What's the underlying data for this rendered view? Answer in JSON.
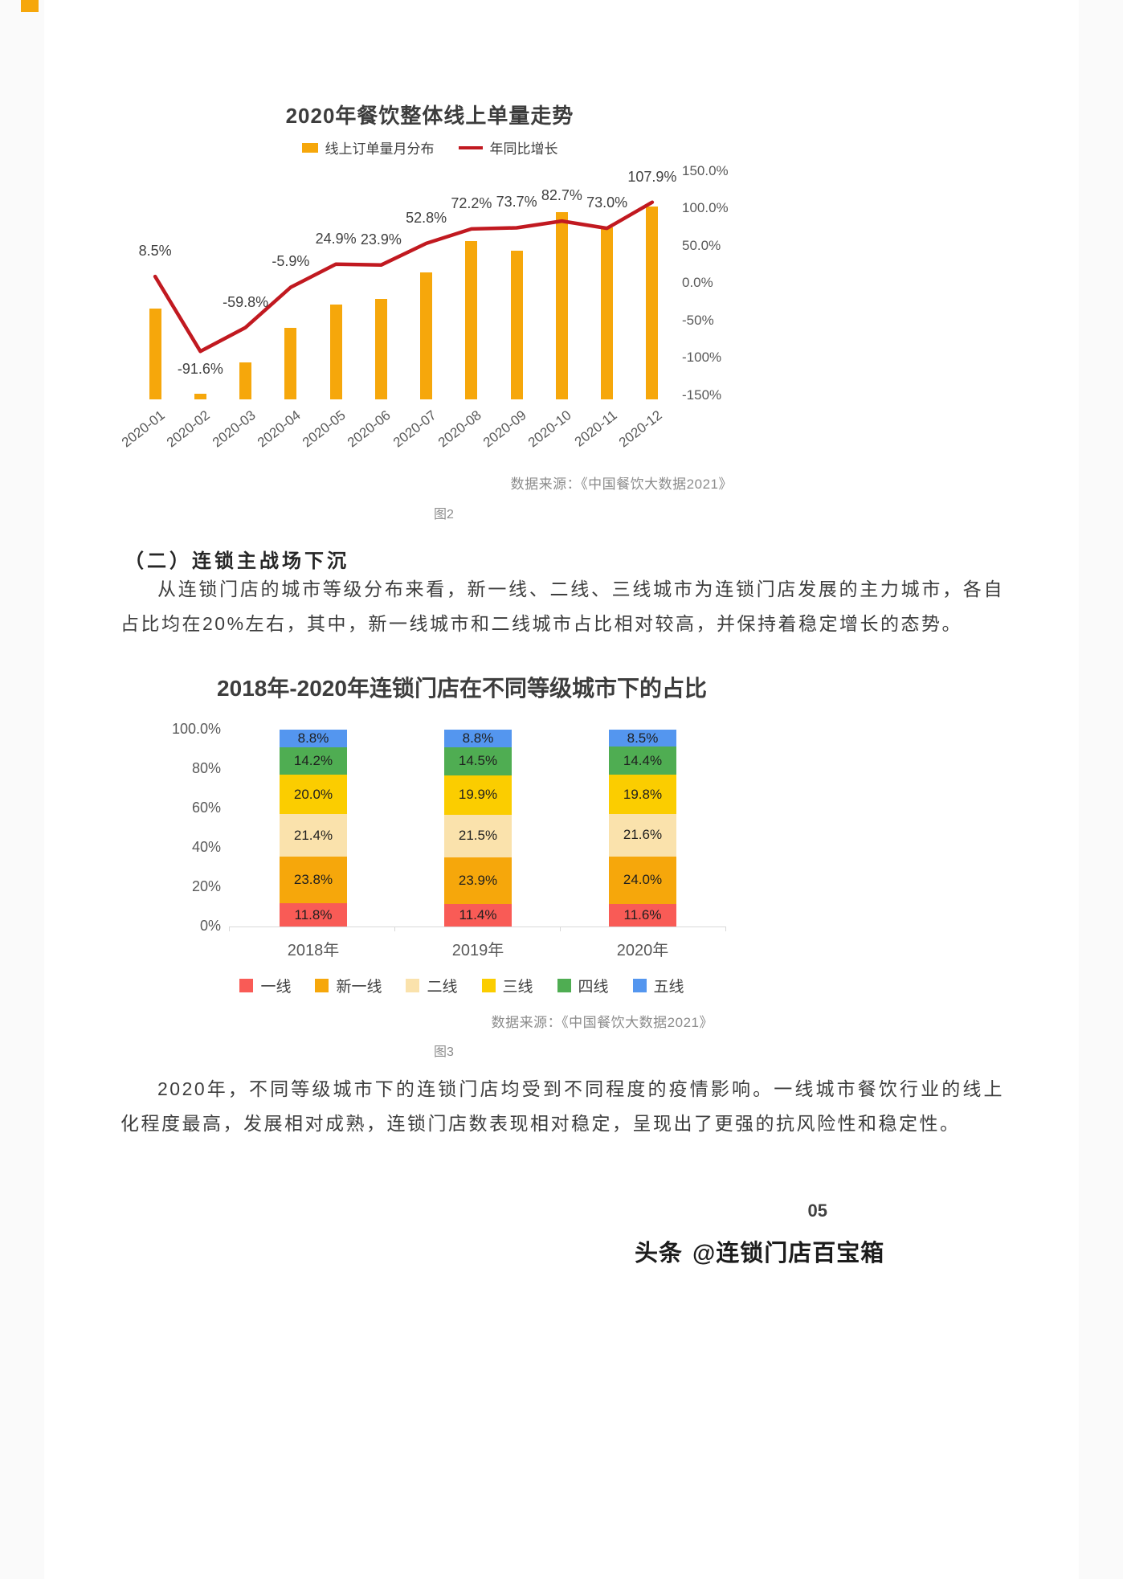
{
  "page_number": "05",
  "watermark": {
    "prefix": "头条",
    "handle": "@连锁门店百宝箱"
  },
  "section": {
    "heading": "（二）连锁主战场下沉",
    "paragraph": "从连锁门店的城市等级分布来看，新一线、二线、三线城市为连锁门店发展的主力城市，各自占比均在20%左右，其中，新一线城市和二线城市占比相对较高，并保持着稳定增长的态势。"
  },
  "closing_paragraph": "2020年，不同等级城市下的连锁门店均受到不同程度的疫情影响。一线城市餐饮行业的线上化程度最高，发展相对成熟，连锁门店数表现相对稳定，呈现出了更强的抗风险性和稳定性。",
  "chart_data": [
    {
      "type": "bar",
      "subtype": "bar+line-combo",
      "title": "2020年餐饮整体线上单量走势",
      "legend": [
        "线上订单量月分布",
        "年同比增长"
      ],
      "legend_position": "top",
      "grid": false,
      "categories": [
        "2020-01",
        "2020-02",
        "2020-03",
        "2020-04",
        "2020-05",
        "2020-06",
        "2020-07",
        "2020-08",
        "2020-09",
        "2020-10",
        "2020-11",
        "2020-12"
      ],
      "series": [
        {
          "name": "线上订单量月分布",
          "type": "bar",
          "unit": "relative-height-estimate",
          "values": [
            0.47,
            0.03,
            0.19,
            0.37,
            0.49,
            0.52,
            0.66,
            0.82,
            0.77,
            0.97,
            0.89,
            1.0
          ]
        },
        {
          "name": "年同比增长",
          "type": "line",
          "unit": "%",
          "values": [
            8.5,
            -91.6,
            -59.8,
            -5.9,
            24.9,
            23.9,
            52.8,
            72.2,
            73.7,
            82.7,
            73.0,
            107.9
          ],
          "labels": [
            "8.5%",
            "-91.6%",
            "-59.8%",
            "-5.9%",
            "24.9%",
            "23.9%",
            "52.8%",
            "72.2%",
            "73.7%",
            "82.7%",
            "73.0%",
            "107.9%"
          ]
        }
      ],
      "y_axis_right": {
        "ticks": [
          "150.0%",
          "100.0%",
          "50.0%",
          "0.0%",
          "-50%",
          "-100%",
          "-150%"
        ],
        "tick_values": [
          150,
          100,
          50,
          0,
          -50,
          -100,
          -150
        ],
        "range": [
          -150,
          150
        ]
      },
      "colors": {
        "bar": "#f6a70b",
        "line": "#c11920"
      },
      "source": "数据来源：《中国餐饮大数据2021》",
      "figure_label": "图2"
    },
    {
      "type": "bar",
      "subtype": "stacked-percentage",
      "title": "2018年-2020年连锁门店在不同等级城市下的占比",
      "grid": false,
      "legend_position": "bottom",
      "categories": [
        "2018年",
        "2019年",
        "2020年"
      ],
      "series": [
        {
          "name": "一线",
          "color": "#f95b56",
          "values": [
            11.8,
            11.4,
            11.6
          ]
        },
        {
          "name": "新一线",
          "color": "#f6a70b",
          "values": [
            23.8,
            23.9,
            24.0
          ]
        },
        {
          "name": "二线",
          "color": "#fae2ac",
          "values": [
            21.4,
            21.5,
            21.6
          ]
        },
        {
          "name": "三线",
          "color": "#fbcd00",
          "values": [
            20.0,
            19.9,
            19.8
          ]
        },
        {
          "name": "四线",
          "color": "#4fad52",
          "values": [
            14.2,
            14.5,
            14.4
          ]
        },
        {
          "name": "五线",
          "color": "#5496ef",
          "values": [
            8.8,
            8.8,
            8.5
          ]
        }
      ],
      "y_axis": {
        "ticks": [
          "100.0%",
          "80%",
          "60%",
          "40%",
          "20%",
          "0%"
        ],
        "tick_values": [
          100,
          80,
          60,
          40,
          20,
          0
        ],
        "range": [
          0,
          100
        ]
      },
      "source": "数据来源：《中国餐饮大数据2021》",
      "figure_label": "图3"
    }
  ]
}
